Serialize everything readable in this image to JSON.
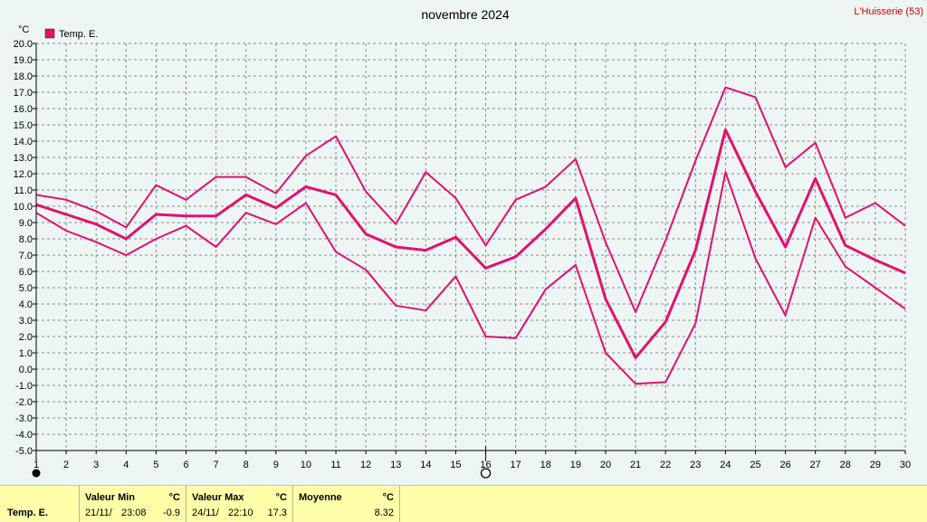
{
  "title": "novembre 2024",
  "station": "L'Huisserie (53)",
  "chart_data": {
    "type": "line",
    "unit": "°C",
    "x": [
      1,
      2,
      3,
      4,
      5,
      6,
      7,
      8,
      9,
      10,
      11,
      12,
      13,
      14,
      15,
      16,
      17,
      18,
      19,
      20,
      21,
      22,
      23,
      24,
      25,
      26,
      27,
      28,
      29,
      30
    ],
    "xlim": [
      1,
      30
    ],
    "ylim": [
      -5,
      20
    ],
    "ystep": 1,
    "grid": true,
    "legend": [
      {
        "label": "Temp. E.",
        "color": "#e0116e"
      }
    ],
    "series": [
      {
        "role": "max",
        "color": "#e0116e",
        "values": [
          10.7,
          10.4,
          9.7,
          8.7,
          11.3,
          10.4,
          11.8,
          11.8,
          10.8,
          13.1,
          14.3,
          10.9,
          8.9,
          12.1,
          10.5,
          7.6,
          10.4,
          11.2,
          12.9,
          7.8,
          3.5,
          7.9,
          12.8,
          17.3,
          16.7,
          12.4,
          13.9,
          9.3,
          10.2,
          8.8
        ]
      },
      {
        "role": "mean",
        "color": "#e0116e",
        "values": [
          10.1,
          9.5,
          8.9,
          8.0,
          9.5,
          9.4,
          9.4,
          10.7,
          9.9,
          11.2,
          10.7,
          8.3,
          7.5,
          7.3,
          8.1,
          6.2,
          6.9,
          8.6,
          10.5,
          4.3,
          0.7,
          2.9,
          7.3,
          14.7,
          10.9,
          7.5,
          11.7,
          7.6,
          6.7,
          5.9
        ]
      },
      {
        "role": "min",
        "color": "#e0116e",
        "values": [
          9.6,
          8.5,
          7.8,
          7.0,
          8.0,
          8.8,
          7.5,
          9.6,
          8.9,
          10.2,
          7.2,
          6.1,
          3.9,
          3.6,
          5.7,
          2.0,
          1.9,
          4.9,
          6.4,
          1.0,
          -0.9,
          -0.8,
          2.8,
          12.1,
          6.8,
          3.3,
          9.3,
          6.3,
          5.0,
          3.7
        ]
      }
    ],
    "markers": [
      {
        "day": 1,
        "symbol": "filled-circle"
      },
      {
        "day": 16,
        "symbol": "open-circle"
      }
    ]
  },
  "stats": {
    "row_label": "Temp. E.",
    "min": {
      "label": "Valeur Min",
      "unit": "°C",
      "date": "21/11/",
      "time": "23:08",
      "value": "-0.9"
    },
    "max": {
      "label": "Valeur Max",
      "unit": "°C",
      "date": "24/11/",
      "time": "22:10",
      "value": "17.3"
    },
    "mean": {
      "label": "Moyenne",
      "unit": "°C",
      "value": "8.32"
    }
  }
}
